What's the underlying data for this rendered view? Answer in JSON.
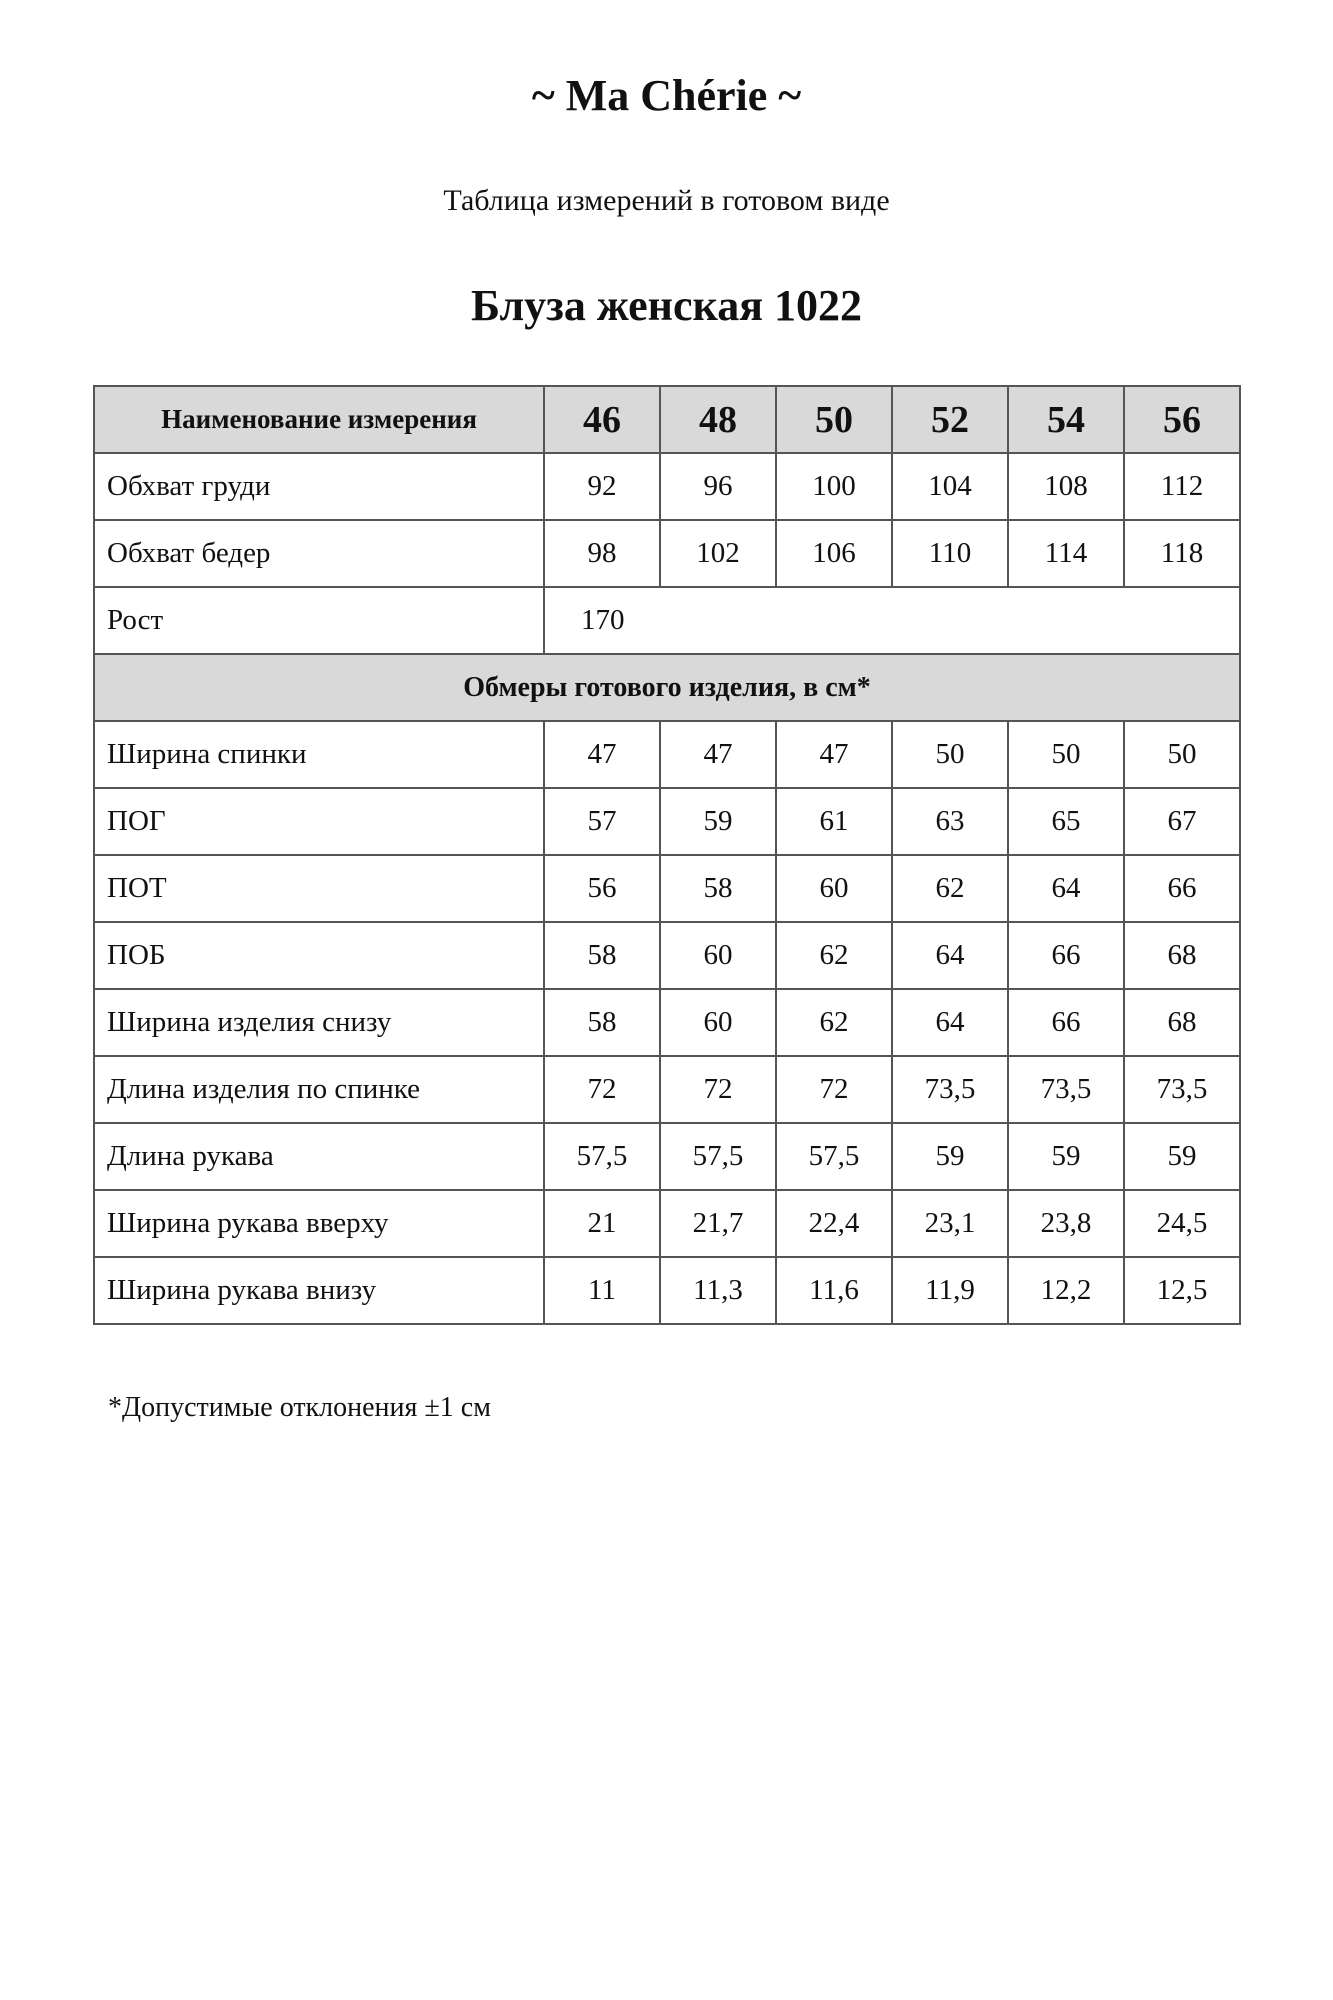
{
  "brand": "~ Ma Chérie ~",
  "subtitle": "Таблица измерений в готовом виде",
  "product_title": "Блуза женская  1022",
  "table": {
    "header_label": "Наименование измерения",
    "sizes": [
      "46",
      "48",
      "50",
      "52",
      "54",
      "56"
    ],
    "body_rows": [
      {
        "label": "Обхват груди",
        "values": [
          "92",
          "96",
          "100",
          "104",
          "108",
          "112"
        ]
      },
      {
        "label": "Обхват бедер",
        "values": [
          "98",
          "102",
          "106",
          "110",
          "114",
          "118"
        ]
      }
    ],
    "height_row": {
      "label": "Рост",
      "value": "170"
    },
    "section_title": "Обмеры готового изделия, в см*",
    "garment_rows": [
      {
        "label": "Ширина спинки",
        "values": [
          "47",
          "47",
          "47",
          "50",
          "50",
          "50"
        ]
      },
      {
        "label": "ПОГ",
        "values": [
          "57",
          "59",
          "61",
          "63",
          "65",
          "67"
        ]
      },
      {
        "label": "ПОТ",
        "values": [
          "56",
          "58",
          "60",
          "62",
          "64",
          "66"
        ]
      },
      {
        "label": "ПОБ",
        "values": [
          "58",
          "60",
          "62",
          "64",
          "66",
          "68"
        ]
      },
      {
        "label": "Ширина изделия снизу",
        "values": [
          "58",
          "60",
          "62",
          "64",
          "66",
          "68"
        ]
      },
      {
        "label": "Длина изделия по спинке",
        "values": [
          "72",
          "72",
          "72",
          "73,5",
          "73,5",
          "73,5"
        ]
      },
      {
        "label": "Длина рукава",
        "values": [
          "57,5",
          "57,5",
          "57,5",
          "59",
          "59",
          "59"
        ]
      },
      {
        "label": "Ширина рукава вверху",
        "values": [
          "21",
          "21,7",
          "22,4",
          "23,1",
          "23,8",
          "24,5"
        ]
      },
      {
        "label": "Ширина рукава внизу",
        "values": [
          "11",
          "11,3",
          "11,6",
          "11,9",
          "12,2",
          "12,5"
        ]
      }
    ]
  },
  "footnote": "*Допустимые отклонения ±1 см"
}
